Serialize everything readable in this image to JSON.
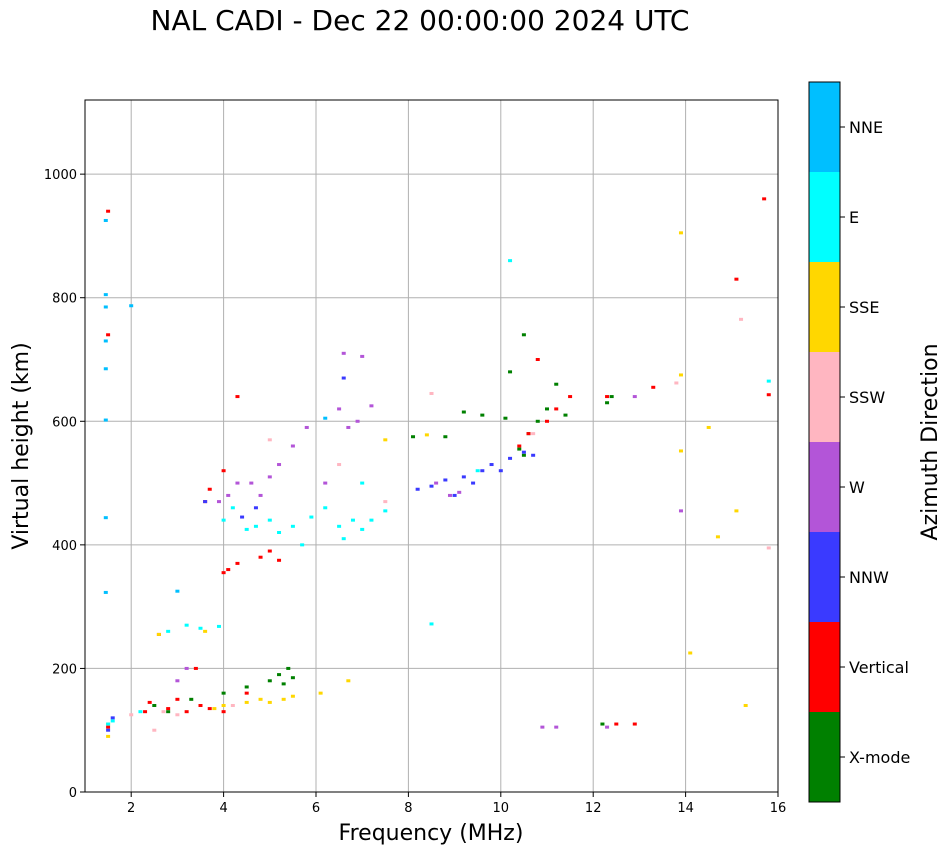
{
  "chart_data": {
    "type": "scatter",
    "title": "NAL CADI - Dec 22 00:00:00 2024 UTC",
    "xlabel": "Frequency (MHz)",
    "ylabel": "Virtual height (km)",
    "xlim": [
      1,
      16
    ],
    "ylim": [
      0,
      1120
    ],
    "xticks": [
      2,
      4,
      6,
      8,
      10,
      12,
      14,
      16
    ],
    "yticks": [
      0,
      200,
      400,
      600,
      800,
      1000
    ],
    "grid": true,
    "colorbar": {
      "label": "Azimuth Direction",
      "categories": [
        {
          "name": "X-mode",
          "color": "#008000"
        },
        {
          "name": "Vertical",
          "color": "#ff0000"
        },
        {
          "name": "NNW",
          "color": "#3a3aff"
        },
        {
          "name": "W",
          "color": "#b355d8"
        },
        {
          "name": "SSW",
          "color": "#ffb6c1"
        },
        {
          "name": "SSE",
          "color": "#ffd700"
        },
        {
          "name": "E",
          "color": "#00ffff"
        },
        {
          "name": "NNE",
          "color": "#00bfff"
        }
      ]
    },
    "series": [
      {
        "name": "X-mode",
        "points": [
          [
            2.5,
            140
          ],
          [
            2.8,
            130
          ],
          [
            3.3,
            150
          ],
          [
            4.0,
            160
          ],
          [
            4.5,
            170
          ],
          [
            5.0,
            180
          ],
          [
            5.2,
            190
          ],
          [
            5.4,
            200
          ],
          [
            5.5,
            185
          ],
          [
            5.3,
            175
          ],
          [
            8.1,
            575
          ],
          [
            8.8,
            575
          ],
          [
            9.2,
            615
          ],
          [
            9.6,
            610
          ],
          [
            10.1,
            605
          ],
          [
            10.4,
            555
          ],
          [
            10.5,
            545
          ],
          [
            10.6,
            580
          ],
          [
            10.8,
            600
          ],
          [
            11.0,
            620
          ],
          [
            11.2,
            660
          ],
          [
            11.4,
            610
          ],
          [
            10.5,
            740
          ],
          [
            10.2,
            680
          ],
          [
            12.2,
            110
          ],
          [
            12.3,
            630
          ],
          [
            12.4,
            640
          ]
        ]
      },
      {
        "name": "Vertical",
        "points": [
          [
            1.5,
            940
          ],
          [
            1.5,
            740
          ],
          [
            1.5,
            105
          ],
          [
            2.3,
            130
          ],
          [
            2.4,
            145
          ],
          [
            2.6,
            255
          ],
          [
            2.8,
            135
          ],
          [
            3.0,
            150
          ],
          [
            3.2,
            130
          ],
          [
            3.4,
            200
          ],
          [
            3.5,
            140
          ],
          [
            3.7,
            135
          ],
          [
            4.0,
            130
          ],
          [
            4.0,
            355
          ],
          [
            4.1,
            360
          ],
          [
            4.3,
            370
          ],
          [
            4.5,
            160
          ],
          [
            4.8,
            380
          ],
          [
            5.0,
            390
          ],
          [
            5.2,
            375
          ],
          [
            3.6,
            470
          ],
          [
            3.7,
            490
          ],
          [
            4.0,
            520
          ],
          [
            4.3,
            640
          ],
          [
            10.4,
            560
          ],
          [
            10.6,
            580
          ],
          [
            10.8,
            700
          ],
          [
            11.0,
            600
          ],
          [
            11.2,
            620
          ],
          [
            11.5,
            640
          ],
          [
            12.3,
            640
          ],
          [
            12.5,
            110
          ],
          [
            12.9,
            110
          ],
          [
            13.3,
            655
          ],
          [
            15.1,
            830
          ],
          [
            15.7,
            960
          ],
          [
            15.8,
            643
          ]
        ]
      },
      {
        "name": "NNW",
        "points": [
          [
            1.5,
            100
          ],
          [
            1.6,
            120
          ],
          [
            3.6,
            470
          ],
          [
            4.4,
            445
          ],
          [
            4.7,
            460
          ],
          [
            6.6,
            670
          ],
          [
            8.2,
            490
          ],
          [
            8.5,
            495
          ],
          [
            8.8,
            505
          ],
          [
            9.0,
            480
          ],
          [
            9.2,
            510
          ],
          [
            9.4,
            500
          ],
          [
            9.6,
            520
          ],
          [
            9.8,
            530
          ],
          [
            10.0,
            520
          ],
          [
            10.2,
            540
          ],
          [
            10.5,
            550
          ],
          [
            10.7,
            545
          ]
        ]
      },
      {
        "name": "W",
        "points": [
          [
            3.0,
            180
          ],
          [
            3.2,
            200
          ],
          [
            3.9,
            470
          ],
          [
            4.1,
            480
          ],
          [
            4.3,
            500
          ],
          [
            4.6,
            500
          ],
          [
            4.8,
            480
          ],
          [
            5.0,
            510
          ],
          [
            5.2,
            530
          ],
          [
            5.5,
            560
          ],
          [
            5.8,
            590
          ],
          [
            6.2,
            500
          ],
          [
            6.5,
            620
          ],
          [
            6.6,
            710
          ],
          [
            6.7,
            590
          ],
          [
            6.9,
            600
          ],
          [
            7.0,
            705
          ],
          [
            7.2,
            625
          ],
          [
            8.6,
            500
          ],
          [
            8.9,
            480
          ],
          [
            9.1,
            485
          ],
          [
            10.9,
            105
          ],
          [
            11.2,
            105
          ],
          [
            12.3,
            105
          ],
          [
            12.9,
            640
          ],
          [
            13.9,
            455
          ]
        ]
      },
      {
        "name": "SSW",
        "points": [
          [
            2.0,
            125
          ],
          [
            2.5,
            100
          ],
          [
            2.7,
            130
          ],
          [
            3.0,
            125
          ],
          [
            4.2,
            140
          ],
          [
            5.0,
            570
          ],
          [
            6.5,
            530
          ],
          [
            7.5,
            470
          ],
          [
            8.5,
            645
          ],
          [
            10.7,
            580
          ],
          [
            13.8,
            662
          ],
          [
            15.2,
            765
          ],
          [
            15.8,
            395
          ]
        ]
      },
      {
        "name": "SSE",
        "points": [
          [
            1.5,
            90
          ],
          [
            1.5,
            110
          ],
          [
            2.6,
            255
          ],
          [
            3.6,
            260
          ],
          [
            3.8,
            135
          ],
          [
            4.0,
            140
          ],
          [
            4.5,
            145
          ],
          [
            4.8,
            150
          ],
          [
            5.0,
            145
          ],
          [
            5.3,
            150
          ],
          [
            5.5,
            155
          ],
          [
            6.1,
            160
          ],
          [
            6.7,
            180
          ],
          [
            7.5,
            570
          ],
          [
            8.4,
            578
          ],
          [
            13.9,
            905
          ],
          [
            13.9,
            675
          ],
          [
            13.9,
            552
          ],
          [
            14.1,
            225
          ],
          [
            14.5,
            590
          ],
          [
            14.7,
            413
          ],
          [
            15.1,
            455
          ],
          [
            15.3,
            140
          ]
        ]
      },
      {
        "name": "E",
        "points": [
          [
            1.5,
            110
          ],
          [
            1.6,
            115
          ],
          [
            2.2,
            130
          ],
          [
            2.8,
            260
          ],
          [
            3.2,
            270
          ],
          [
            3.5,
            265
          ],
          [
            3.9,
            268
          ],
          [
            4.0,
            440
          ],
          [
            4.2,
            460
          ],
          [
            4.5,
            425
          ],
          [
            4.7,
            430
          ],
          [
            5.0,
            440
          ],
          [
            5.2,
            420
          ],
          [
            5.5,
            430
          ],
          [
            5.7,
            400
          ],
          [
            5.9,
            445
          ],
          [
            6.2,
            460
          ],
          [
            6.5,
            430
          ],
          [
            6.6,
            410
          ],
          [
            6.8,
            440
          ],
          [
            7.0,
            425
          ],
          [
            7.2,
            440
          ],
          [
            7.5,
            455
          ],
          [
            7.0,
            500
          ],
          [
            8.5,
            272
          ],
          [
            9.5,
            520
          ],
          [
            10.2,
            860
          ],
          [
            15.8,
            665
          ]
        ]
      },
      {
        "name": "NNE",
        "points": [
          [
            1.45,
            323
          ],
          [
            1.45,
            444
          ],
          [
            1.45,
            602
          ],
          [
            1.45,
            685
          ],
          [
            1.45,
            730
          ],
          [
            1.45,
            785
          ],
          [
            1.45,
            805
          ],
          [
            1.45,
            925
          ],
          [
            2.0,
            787
          ],
          [
            3.0,
            325
          ],
          [
            6.2,
            605
          ]
        ]
      }
    ]
  }
}
